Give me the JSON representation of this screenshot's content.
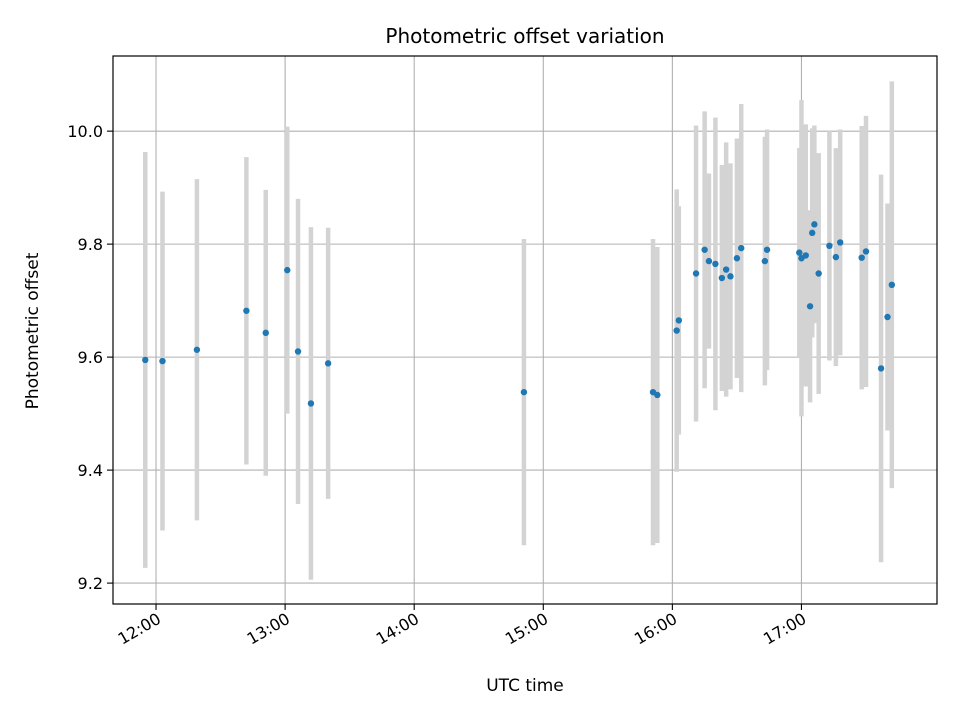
{
  "chart_data": {
    "type": "scatter",
    "title": "Photometric offset variation",
    "xlabel": "UTC time",
    "ylabel": "Photometric offset",
    "xlim": [
      "11:40",
      "18:03"
    ],
    "ylim": [
      9.163,
      10.133
    ],
    "x_ticks": [
      "12:00",
      "13:00",
      "14:00",
      "15:00",
      "16:00",
      "17:00"
    ],
    "y_ticks": [
      9.2,
      9.4,
      9.6,
      9.8,
      10.0
    ],
    "y_tick_labels": [
      "9.2",
      "9.4",
      "9.6",
      "9.8",
      "10.0"
    ],
    "grid": true,
    "error_bars": true,
    "colors": {
      "point": "#1f77b4",
      "error_bar": "#d3d3d3",
      "grid": "#b0b0b0"
    },
    "series": [
      {
        "points": [
          {
            "x": "11:55",
            "y": 9.595,
            "err": 0.368
          },
          {
            "x": "12:03",
            "y": 9.593,
            "err": 0.3
          },
          {
            "x": "12:19",
            "y": 9.613,
            "err": 0.302
          },
          {
            "x": "12:42",
            "y": 9.682,
            "err": 0.272
          },
          {
            "x": "12:51",
            "y": 9.643,
            "err": 0.253
          },
          {
            "x": "13:01",
            "y": 9.754,
            "err": 0.254
          },
          {
            "x": "13:06",
            "y": 9.61,
            "err": 0.27
          },
          {
            "x": "13:12",
            "y": 9.518,
            "err": 0.312
          },
          {
            "x": "13:20",
            "y": 9.589,
            "err": 0.24
          },
          {
            "x": "14:51",
            "y": 9.538,
            "err": 0.271
          },
          {
            "x": "15:51",
            "y": 9.538,
            "err": 0.271
          },
          {
            "x": "15:53",
            "y": 9.533,
            "err": 0.262
          },
          {
            "x": "16:02",
            "y": 9.647,
            "err": 0.25
          },
          {
            "x": "16:03",
            "y": 9.665,
            "err": 0.202
          },
          {
            "x": "16:11",
            "y": 9.748,
            "err": 0.262
          },
          {
            "x": "16:15",
            "y": 9.79,
            "err": 0.245
          },
          {
            "x": "16:17",
            "y": 9.77,
            "err": 0.155
          },
          {
            "x": "16:20",
            "y": 9.765,
            "err": 0.259
          },
          {
            "x": "16:23",
            "y": 9.74,
            "err": 0.2
          },
          {
            "x": "16:25",
            "y": 9.755,
            "err": 0.225
          },
          {
            "x": "16:27",
            "y": 9.743,
            "err": 0.2
          },
          {
            "x": "16:30",
            "y": 9.775,
            "err": 0.212
          },
          {
            "x": "16:32",
            "y": 9.793,
            "err": 0.255
          },
          {
            "x": "16:43",
            "y": 9.77,
            "err": 0.22
          },
          {
            "x": "16:44",
            "y": 9.79,
            "err": 0.213
          },
          {
            "x": "16:59",
            "y": 9.785,
            "err": 0.185
          },
          {
            "x": "17:00",
            "y": 9.775,
            "err": 0.28
          },
          {
            "x": "17:02",
            "y": 9.78,
            "err": 0.232
          },
          {
            "x": "17:04",
            "y": 9.69,
            "err": 0.17
          },
          {
            "x": "17:05",
            "y": 9.82,
            "err": 0.185
          },
          {
            "x": "17:06",
            "y": 9.835,
            "err": 0.175
          },
          {
            "x": "17:08",
            "y": 9.748,
            "err": 0.213
          },
          {
            "x": "17:13",
            "y": 9.797,
            "err": 0.203
          },
          {
            "x": "17:16",
            "y": 9.777,
            "err": 0.193
          },
          {
            "x": "17:18",
            "y": 9.803,
            "err": 0.2
          },
          {
            "x": "17:28",
            "y": 9.776,
            "err": 0.233
          },
          {
            "x": "17:30",
            "y": 9.787,
            "err": 0.24
          },
          {
            "x": "17:37",
            "y": 9.58,
            "err": 0.343
          },
          {
            "x": "17:40",
            "y": 9.671,
            "err": 0.201
          },
          {
            "x": "17:42",
            "y": 9.728,
            "err": 0.36
          }
        ]
      }
    ]
  }
}
